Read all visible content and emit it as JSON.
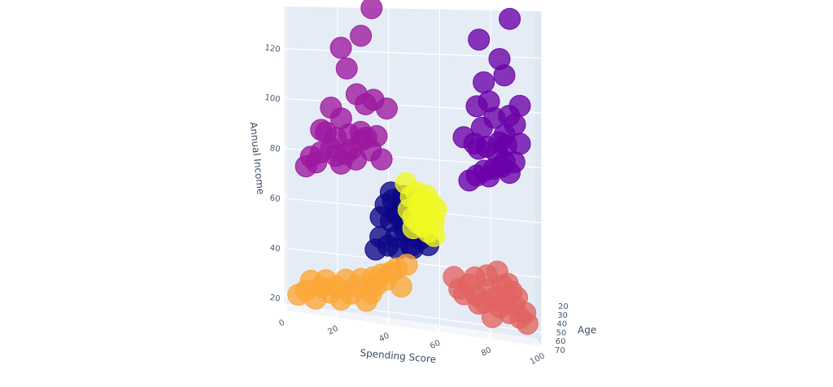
{
  "chart_data": {
    "type": "scatter",
    "dimensions": "3d",
    "axes": {
      "x": {
        "label": "Spending Score",
        "ticks": [
          0,
          20,
          40,
          60,
          80,
          100
        ],
        "range": [
          0,
          100
        ]
      },
      "y": {
        "label": "Age",
        "ticks": [
          20,
          30,
          40,
          50,
          60,
          70
        ],
        "range": [
          18,
          70
        ]
      },
      "z": {
        "label": "Annual Income",
        "ticks": [
          20,
          40,
          60,
          80,
          100,
          120
        ],
        "range": [
          15,
          137
        ]
      }
    },
    "background_color": "#e5ecf6",
    "grid": true,
    "legend": "none",
    "series": [
      {
        "color": "#9c179e",
        "points": [
          [
            8,
            38,
            73
          ],
          [
            10,
            40,
            77
          ],
          [
            14,
            44,
            79
          ],
          [
            18,
            42,
            81
          ],
          [
            20,
            45,
            78
          ],
          [
            22,
            48,
            75
          ],
          [
            12,
            36,
            75
          ],
          [
            24,
            50,
            79
          ],
          [
            26,
            46,
            81
          ],
          [
            28,
            52,
            77
          ],
          [
            30,
            41,
            85
          ],
          [
            32,
            47,
            86
          ],
          [
            16,
            49,
            87
          ],
          [
            34,
            54,
            81
          ],
          [
            36,
            43,
            87
          ],
          [
            38,
            45,
            78
          ],
          [
            25,
            39,
            87
          ],
          [
            20,
            51,
            85
          ],
          [
            14,
            41,
            88
          ],
          [
            30,
            56,
            88
          ],
          [
            22,
            45,
            93
          ],
          [
            18,
            47,
            97
          ],
          [
            40,
            44,
            98
          ],
          [
            35,
            53,
            101
          ],
          [
            28,
            40,
            103
          ],
          [
            32,
            58,
            99
          ],
          [
            24,
            36,
            113
          ],
          [
            22,
            49,
            121
          ],
          [
            30,
            54,
            126
          ],
          [
            34,
            43,
            137
          ]
        ]
      },
      {
        "color": "#6a00a8",
        "points": [
          [
            72,
            28,
            73
          ],
          [
            75,
            30,
            75
          ],
          [
            78,
            32,
            77
          ],
          [
            80,
            34,
            75
          ],
          [
            82,
            35,
            78
          ],
          [
            85,
            33,
            79
          ],
          [
            86,
            30,
            81
          ],
          [
            88,
            31,
            77
          ],
          [
            90,
            34,
            81
          ],
          [
            83,
            29,
            84
          ],
          [
            76,
            36,
            85
          ],
          [
            79,
            32,
            86
          ],
          [
            87,
            38,
            87
          ],
          [
            92,
            30,
            88
          ],
          [
            74,
            28,
            87
          ],
          [
            84,
            34,
            88
          ],
          [
            70,
            33,
            89
          ],
          [
            86,
            31,
            91
          ],
          [
            77,
            30,
            93
          ],
          [
            90,
            29,
            95
          ],
          [
            82,
            32,
            97
          ],
          [
            88,
            36,
            98
          ],
          [
            75,
            30,
            101
          ],
          [
            80,
            34,
            103
          ],
          [
            92,
            31,
            102
          ],
          [
            78,
            36,
            110
          ],
          [
            86,
            33,
            113
          ],
          [
            84,
            31,
            119
          ],
          [
            76,
            33,
            126
          ],
          [
            88,
            30,
            134
          ]
        ]
      },
      {
        "color": "#0d0887",
        "points": [
          [
            38,
            58,
            55
          ],
          [
            42,
            56,
            54
          ],
          [
            45,
            54,
            57
          ],
          [
            48,
            60,
            52
          ],
          [
            50,
            63,
            54
          ],
          [
            44,
            62,
            57
          ],
          [
            47,
            55,
            61
          ],
          [
            52,
            58,
            63
          ],
          [
            49,
            64,
            58
          ],
          [
            55,
            61,
            54
          ],
          [
            40,
            60,
            60
          ],
          [
            43,
            65,
            62
          ],
          [
            53,
            57,
            60
          ],
          [
            46,
            67,
            55
          ],
          [
            51,
            59,
            49
          ],
          [
            44,
            56,
            48
          ],
          [
            55,
            66,
            51
          ],
          [
            38,
            63,
            47
          ],
          [
            48,
            68,
            50
          ],
          [
            57,
            60,
            46
          ],
          [
            41,
            61,
            44
          ],
          [
            50,
            58,
            45
          ],
          [
            45,
            66,
            43
          ],
          [
            36,
            59,
            42
          ],
          [
            54,
            62,
            48
          ],
          [
            47,
            61,
            64
          ],
          [
            42,
            58,
            65
          ],
          [
            51,
            64,
            44
          ]
        ]
      },
      {
        "color": "#f0f921",
        "points": [
          [
            48,
            22,
            60
          ],
          [
            52,
            24,
            62
          ],
          [
            55,
            26,
            58
          ],
          [
            50,
            28,
            57
          ],
          [
            57,
            22,
            63
          ],
          [
            53,
            27,
            60
          ],
          [
            58,
            25,
            56
          ],
          [
            54,
            23,
            54
          ],
          [
            49,
            26,
            65
          ],
          [
            56,
            29,
            52
          ],
          [
            51,
            21,
            67
          ],
          [
            59,
            27,
            61
          ],
          [
            55,
            24,
            66
          ],
          [
            52,
            29,
            55
          ],
          [
            47,
            25,
            70
          ],
          [
            58,
            22,
            51
          ],
          [
            50,
            27,
            53
          ],
          [
            54,
            30,
            59
          ],
          [
            56,
            23,
            57
          ],
          [
            53,
            26,
            64
          ]
        ]
      },
      {
        "color": "#fca636",
        "points": [
          [
            5,
            40,
            21
          ],
          [
            8,
            42,
            23
          ],
          [
            10,
            45,
            27
          ],
          [
            12,
            48,
            20
          ],
          [
            14,
            44,
            25
          ],
          [
            16,
            46,
            28
          ],
          [
            18,
            50,
            23
          ],
          [
            20,
            43,
            26
          ],
          [
            22,
            47,
            21
          ],
          [
            24,
            51,
            29
          ],
          [
            26,
            45,
            24
          ],
          [
            28,
            49,
            27
          ],
          [
            30,
            52,
            30
          ],
          [
            32,
            44,
            22
          ],
          [
            34,
            48,
            25
          ],
          [
            36,
            53,
            28
          ],
          [
            38,
            46,
            33
          ],
          [
            40,
            50,
            31
          ],
          [
            42,
            55,
            34
          ],
          [
            44,
            48,
            36
          ],
          [
            46,
            52,
            29
          ],
          [
            48,
            45,
            38
          ],
          [
            35,
            57,
            31
          ]
        ]
      },
      {
        "color": "#e16462",
        "points": [
          [
            68,
            25,
            32
          ],
          [
            72,
            27,
            34
          ],
          [
            75,
            30,
            30
          ],
          [
            78,
            26,
            28
          ],
          [
            80,
            28,
            33
          ],
          [
            82,
            31,
            30
          ],
          [
            84,
            24,
            27
          ],
          [
            86,
            29,
            29
          ],
          [
            88,
            32,
            25
          ],
          [
            85,
            27,
            35
          ],
          [
            90,
            30,
            28
          ],
          [
            92,
            26,
            24
          ],
          [
            76,
            33,
            27
          ],
          [
            70,
            29,
            30
          ],
          [
            74,
            24,
            37
          ],
          [
            79,
            31,
            38
          ],
          [
            83,
            28,
            40
          ],
          [
            87,
            26,
            36
          ],
          [
            91,
            33,
            31
          ],
          [
            94,
            28,
            26
          ],
          [
            66,
            30,
            36
          ],
          [
            81,
            25,
            23
          ],
          [
            95,
            31,
            22
          ],
          [
            89,
            35,
            33
          ]
        ]
      }
    ]
  }
}
